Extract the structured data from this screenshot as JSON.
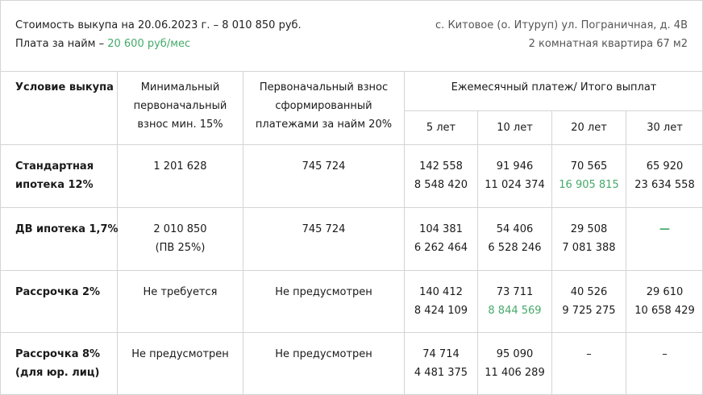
{
  "header": {
    "price_text": "Стоимость выкупа на 20.06.2023 г. – 8 010 850 руб.",
    "rent_label": "Плата за найм –",
    "rent_value": "20 600 руб/мес",
    "address": "с. Китовое (о. Итуруп) ул. Пограничная, д. 4В",
    "apartment": "2 комнатная квартира 67 м2"
  },
  "table": {
    "col_condition": "Условие выкупа",
    "col_min_line1": "Минимальный",
    "col_min_line2": "первоначальный",
    "col_min_line3": "взнос мин. 15%",
    "col_init_line1": "Первоначальный взнос",
    "col_init_line2": "сформированный",
    "col_init_line3": "платежами за найм 20%",
    "col_monthly": "Ежемесячный платеж/ Итого выплат",
    "years": [
      "5 лет",
      "10 лет",
      "20 лет",
      "30 лет"
    ],
    "rows": [
      {
        "name_line1": "Стандартная",
        "name_line2": "ипотека 12%",
        "min_line1": "1 201 628",
        "min_line2": "",
        "init": "745 724",
        "p5": [
          "142 558",
          "8 548 420"
        ],
        "p10": [
          "91 946",
          "11 024 374"
        ],
        "p20": [
          "70 565",
          "16 905 815"
        ],
        "p30": [
          "65 920",
          "23 634 558"
        ]
      },
      {
        "name_line1": "ДВ ипотека 1,7%",
        "name_line2": "",
        "min_line1": "2 010 850",
        "min_line2": "(ПВ 25%)",
        "init": "745 724",
        "p5": [
          "104 381",
          "6 262 464"
        ],
        "p10": [
          "54 406",
          "6 528 246"
        ],
        "p20": [
          "29 508",
          "7 081 388"
        ],
        "p30": [
          "—",
          ""
        ]
      },
      {
        "name_line1": "Рассрочка 2%",
        "name_line2": "",
        "min_line1": "Не требуется",
        "min_line2": "",
        "init": "Не предусмотрен",
        "p5": [
          "140 412",
          "8 424 109"
        ],
        "p10": [
          "73 711",
          "8 844 569"
        ],
        "p20": [
          "40 526",
          "9 725 275"
        ],
        "p30": [
          "29 610",
          "10 658 429"
        ]
      },
      {
        "name_line1": "Рассрочка 8%",
        "name_line2": "(для юр. лиц)",
        "min_line1": "Не предусмотрен",
        "min_line2": "",
        "init": "Не предусмотрен",
        "p5": [
          "74 714",
          "4 481 375"
        ],
        "p10": [
          "95 090",
          "11 406 289"
        ],
        "p20": [
          "–",
          ""
        ],
        "p30": [
          "–",
          ""
        ]
      }
    ]
  }
}
